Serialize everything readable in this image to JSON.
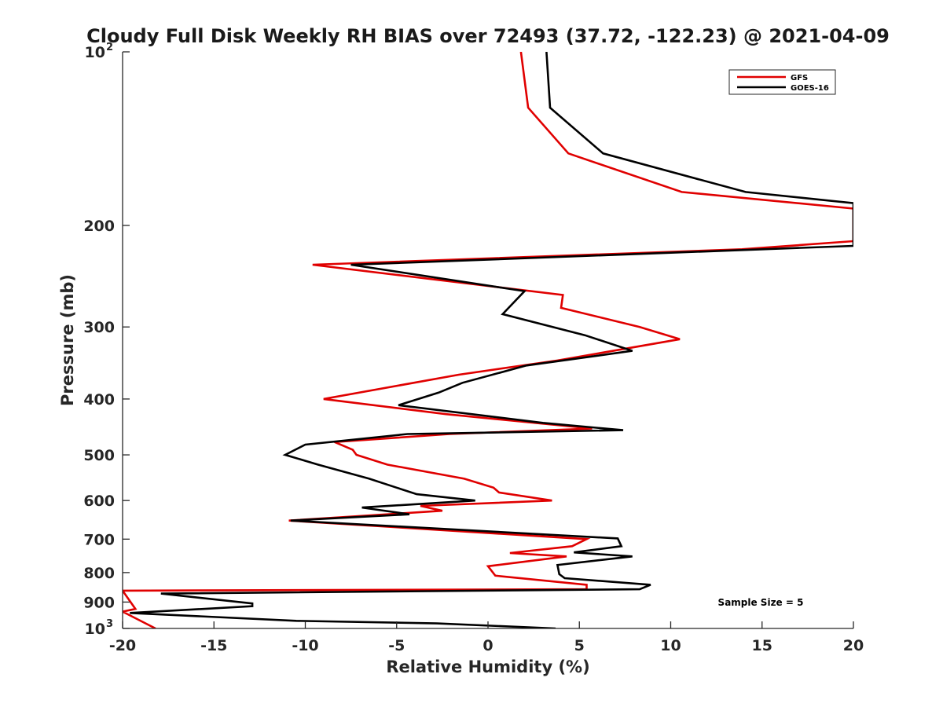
{
  "chart_data": {
    "type": "line",
    "title": "Cloudy Full Disk Weekly RH BIAS over 72493 (37.72, -122.23) @ 2021-04-09",
    "xlabel": "Relative Humidity (%)",
    "ylabel": "Pressure (mb)",
    "xlim": [
      -20,
      20
    ],
    "ylim": [
      100,
      1000
    ],
    "y_scale": "log",
    "y_reversed": true,
    "grid": false,
    "legend_position": "top-right",
    "annotation": "Sample Size = 5",
    "x_ticks": [
      -20,
      -15,
      -10,
      -5,
      0,
      5,
      10,
      15,
      20
    ],
    "x_tick_labels": [
      "-20",
      "-15",
      "-10",
      "-5",
      "0",
      "5",
      "10",
      "15",
      "20"
    ],
    "y_ticks": [
      {
        "value": 100,
        "base": "10",
        "exp": "2"
      },
      {
        "value": 200,
        "base": "200",
        "exp": ""
      },
      {
        "value": 300,
        "base": "300",
        "exp": ""
      },
      {
        "value": 400,
        "base": "400",
        "exp": ""
      },
      {
        "value": 500,
        "base": "500",
        "exp": ""
      },
      {
        "value": 600,
        "base": "600",
        "exp": ""
      },
      {
        "value": 700,
        "base": "700",
        "exp": ""
      },
      {
        "value": 800,
        "base": "800",
        "exp": ""
      },
      {
        "value": 900,
        "base": "900",
        "exp": ""
      },
      {
        "value": 1000,
        "base": "10",
        "exp": "3"
      }
    ],
    "series": [
      {
        "name": "GFS",
        "color": "#e00000",
        "points": [
          [
            1.8,
            100
          ],
          [
            2.2,
            125
          ],
          [
            4.4,
            150
          ],
          [
            10.6,
            175
          ],
          [
            20,
            187
          ],
          [
            20,
            213
          ],
          [
            13.9,
            220
          ],
          [
            -9.6,
            234
          ],
          [
            4.1,
            264
          ],
          [
            4.0,
            278
          ],
          [
            8.3,
            300
          ],
          [
            10.5,
            315
          ],
          [
            3.8,
            343
          ],
          [
            -1.6,
            363
          ],
          [
            -9.0,
            400
          ],
          [
            -2.3,
            425
          ],
          [
            5.7,
            450
          ],
          [
            -2.1,
            460
          ],
          [
            -8.4,
            475
          ],
          [
            -7.4,
            490
          ],
          [
            -7.2,
            500
          ],
          [
            -5.5,
            520
          ],
          [
            -1.3,
            550
          ],
          [
            0.3,
            570
          ],
          [
            0.6,
            581
          ],
          [
            3.5,
            600
          ],
          [
            -3.7,
            613
          ],
          [
            -2.5,
            625
          ],
          [
            -10.9,
            650
          ],
          [
            5.4,
            700
          ],
          [
            4.6,
            720
          ],
          [
            1.2,
            740
          ],
          [
            4.3,
            750
          ],
          [
            0.0,
            780
          ],
          [
            0.4,
            810
          ],
          [
            5.4,
            840
          ],
          [
            5.4,
            855
          ],
          [
            -20,
            860
          ],
          [
            -19.3,
            925
          ],
          [
            -20,
            935
          ],
          [
            -18.2,
            1000
          ]
        ]
      },
      {
        "name": "GOES-16",
        "color": "#000000",
        "points": [
          [
            3.2,
            100
          ],
          [
            3.4,
            125
          ],
          [
            6.3,
            150
          ],
          [
            14.1,
            175
          ],
          [
            20,
            183
          ],
          [
            20,
            217
          ],
          [
            -7.5,
            234
          ],
          [
            2.0,
            260
          ],
          [
            0.8,
            285
          ],
          [
            5.3,
            310
          ],
          [
            7.9,
            330
          ],
          [
            2.1,
            350
          ],
          [
            -1.4,
            375
          ],
          [
            -2.7,
            390
          ],
          [
            -4.9,
            410
          ],
          [
            3.0,
            440
          ],
          [
            7.4,
            453
          ],
          [
            -4.4,
            460
          ],
          [
            -10.0,
            480
          ],
          [
            -11.1,
            500
          ],
          [
            -9.3,
            520
          ],
          [
            -6.5,
            550
          ],
          [
            -5.0,
            570
          ],
          [
            -3.9,
            585
          ],
          [
            -0.7,
            600
          ],
          [
            -6.9,
            617
          ],
          [
            -4.3,
            634
          ],
          [
            -10.8,
            650
          ],
          [
            7.1,
            698
          ],
          [
            7.3,
            720
          ],
          [
            4.7,
            738
          ],
          [
            7.9,
            750
          ],
          [
            3.8,
            776
          ],
          [
            3.9,
            805
          ],
          [
            4.2,
            818
          ],
          [
            8.9,
            840
          ],
          [
            8.3,
            855
          ],
          [
            -17.9,
            870
          ],
          [
            -12.9,
            905
          ],
          [
            -12.9,
            915
          ],
          [
            -19.6,
            940
          ],
          [
            -10.5,
            970
          ],
          [
            -2.8,
            980
          ],
          [
            3.7,
            1000
          ]
        ]
      }
    ]
  }
}
